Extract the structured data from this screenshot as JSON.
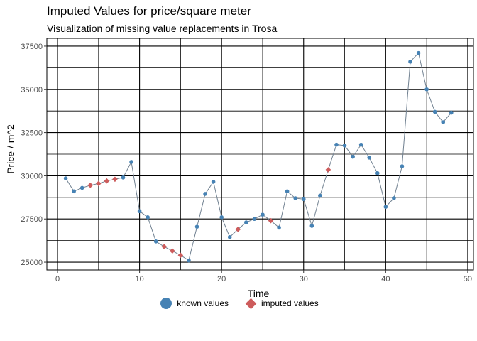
{
  "chart_data": {
    "type": "line",
    "title": "Imputed Values for price/square meter",
    "subtitle": "Visualization of missing value replacements in Trosa",
    "xlabel": "Time",
    "ylabel": "Price / m^2",
    "xlim": [
      0,
      50
    ],
    "ylim": [
      25000,
      37500
    ],
    "xticks": [
      0,
      10,
      20,
      30,
      40,
      50
    ],
    "yticks": [
      25000,
      27500,
      30000,
      32500,
      35000,
      37500
    ],
    "ytick_labels": [
      "25000",
      "27500",
      "30000",
      "32500",
      "35000",
      "37500"
    ],
    "grid": true,
    "legend_position": "bottom",
    "colors": {
      "known": "#4682B4",
      "imputed": "#CD5C5C",
      "line": "#708090"
    },
    "series": [
      {
        "name": "known values",
        "x": [
          1,
          2,
          3,
          8,
          9,
          10,
          11,
          12,
          16,
          17,
          18,
          19,
          20,
          21,
          23,
          24,
          25,
          27,
          28,
          29,
          30,
          31,
          32,
          34,
          35,
          36,
          37,
          38,
          39,
          40,
          41,
          42,
          43,
          44,
          45,
          46,
          47,
          48
        ],
        "y": [
          29850,
          29100,
          29300,
          29900,
          30800,
          27950,
          27600,
          26200,
          25100,
          27050,
          28950,
          29650,
          27600,
          26450,
          27300,
          27500,
          27750,
          27000,
          29100,
          28700,
          28650,
          27100,
          28850,
          31800,
          31750,
          31100,
          31800,
          31050,
          30150,
          28200,
          28700,
          30550,
          36600,
          37100,
          35000,
          33700,
          33100,
          33650
        ]
      },
      {
        "name": "imputed values",
        "x": [
          4,
          5,
          6,
          7,
          13,
          14,
          15,
          22,
          26,
          33
        ],
        "y": [
          29450,
          29550,
          29700,
          29800,
          25900,
          25650,
          25400,
          26900,
          27400,
          30350
        ]
      }
    ]
  },
  "legend": {
    "known_label": "known values",
    "imputed_label": "imputed values"
  }
}
